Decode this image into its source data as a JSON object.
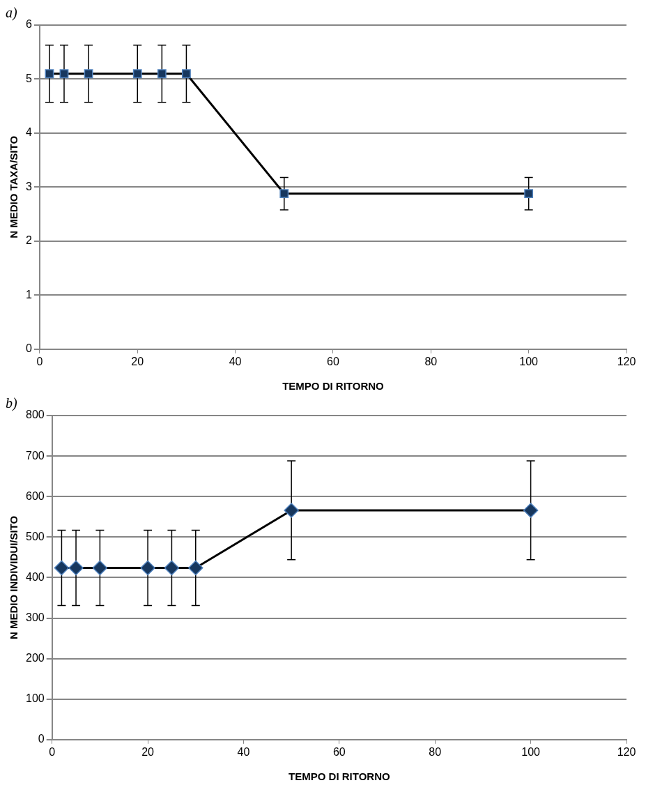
{
  "chart_data": [
    {
      "type": "line",
      "title": "a)",
      "xlabel": "TEMPO DI RITORNO",
      "ylabel": "N MEDIO TAXA/SITO",
      "series": [
        {
          "color": "#17375e",
          "x": [
            2,
            5,
            10,
            20,
            25,
            30,
            50,
            100
          ],
          "values": [
            5.1,
            5.1,
            5.1,
            5.1,
            5.1,
            5.1,
            2.88,
            2.88
          ],
          "errors": [
            0.53,
            0.53,
            0.53,
            0.53,
            0.53,
            0.53,
            0.3,
            0.3
          ]
        }
      ],
      "xlim": [
        0,
        120
      ],
      "xticks": [
        0,
        20,
        40,
        60,
        80,
        100,
        120
      ],
      "ylim": [
        0,
        6
      ],
      "yticks": [
        0,
        1,
        2,
        3,
        4,
        5,
        6
      ],
      "grid": "y",
      "legend": false,
      "marker": "square",
      "line_style": "solid"
    },
    {
      "type": "line",
      "title": "b)",
      "xlabel": "TEMPO DI RITORNO",
      "ylabel": "N MEDIO INDIVIDUI/SITO",
      "series": [
        {
          "color": "#17375e",
          "x": [
            2,
            5,
            10,
            20,
            25,
            30,
            50,
            100
          ],
          "values": [
            424,
            424,
            424,
            424,
            424,
            424,
            566,
            566
          ],
          "errors": [
            93,
            93,
            93,
            93,
            93,
            93,
            122,
            122
          ]
        }
      ],
      "xlim": [
        0,
        120
      ],
      "xticks": [
        0,
        20,
        40,
        60,
        80,
        100,
        120
      ],
      "ylim": [
        0,
        800
      ],
      "yticks": [
        0,
        100,
        200,
        300,
        400,
        500,
        600,
        700,
        800
      ],
      "grid": "y",
      "legend": false,
      "marker": "diamond",
      "line_style": "solid"
    }
  ]
}
